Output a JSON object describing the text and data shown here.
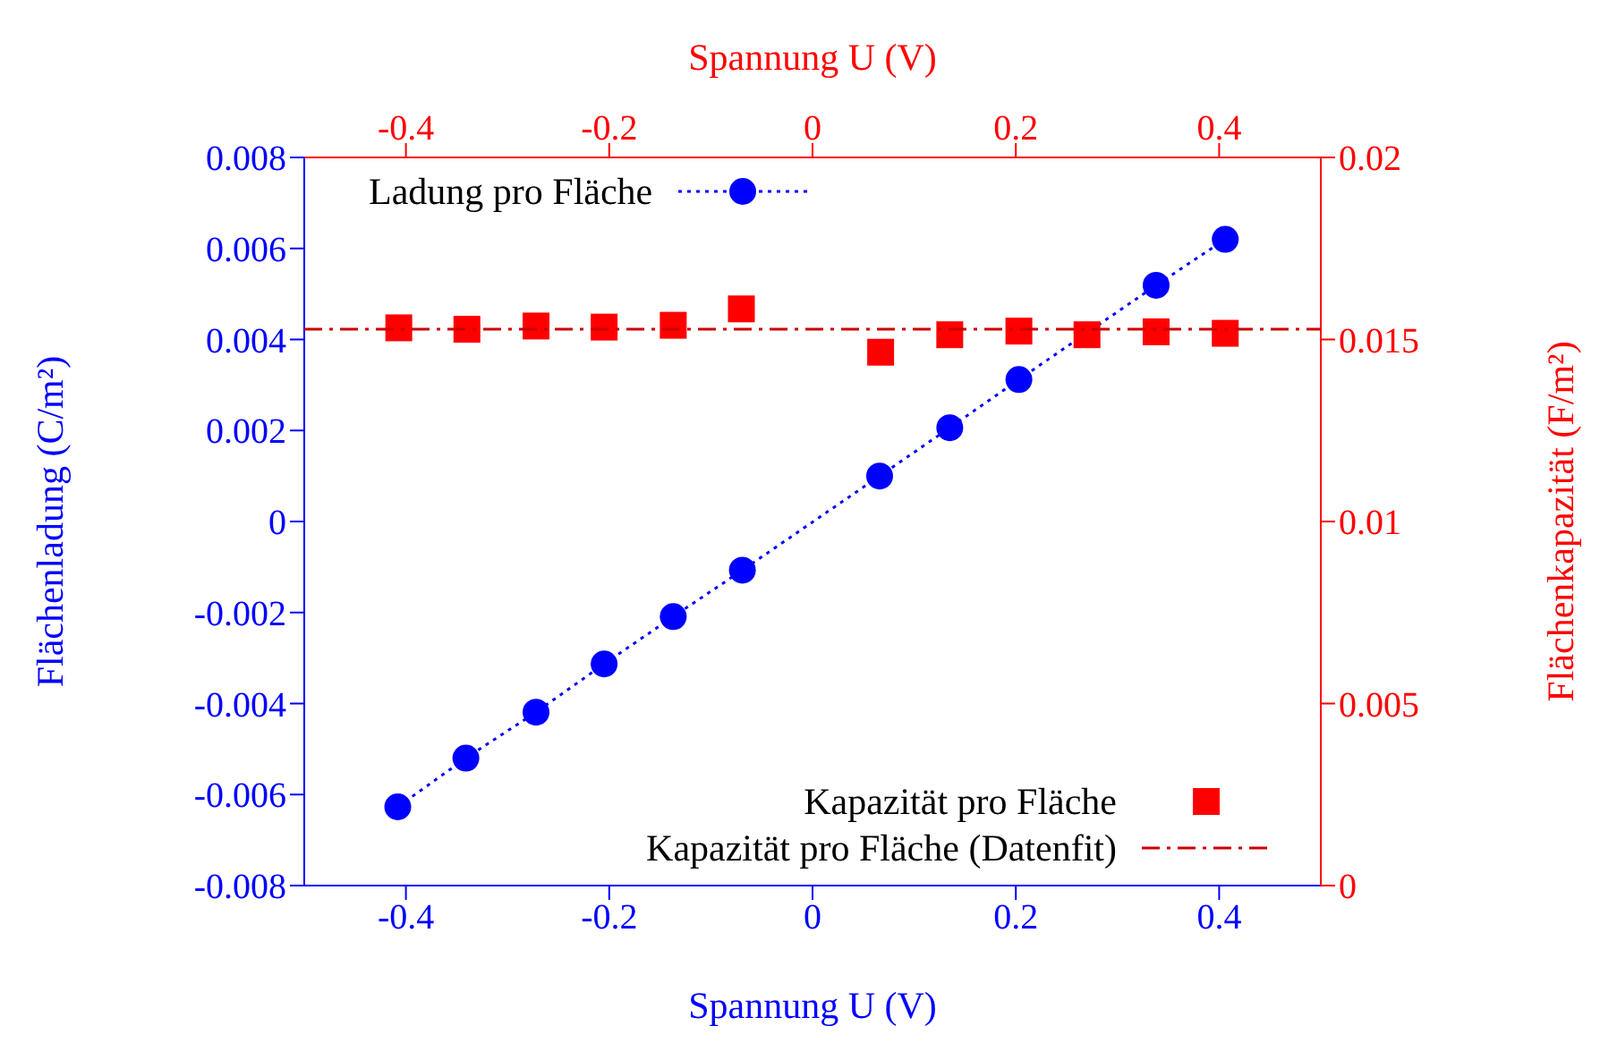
{
  "chart_data": {
    "type": "scatter",
    "xlabel": "Spannung U (V)",
    "x2label": "Spannung U (V)",
    "ylabel": "Flächenladung (C/m²)",
    "y2label": "Flächenkapazität (F/m²)",
    "xlim": [
      -0.5,
      0.5
    ],
    "xticks": [
      -0.4,
      -0.2,
      0,
      0.2,
      0.4
    ],
    "x2lim": [
      -0.5,
      0.5
    ],
    "x2ticks": [
      -0.4,
      -0.2,
      0,
      0.2,
      0.4
    ],
    "ylim": [
      -0.008,
      0.008
    ],
    "yticks": [
      -0.008,
      -0.006,
      -0.004,
      -0.002,
      0,
      0.002,
      0.004,
      0.006,
      0.008
    ],
    "y2lim": [
      0,
      0.02
    ],
    "y2ticks": [
      0,
      0.005,
      0.01,
      0.015,
      0.02
    ],
    "legend": "bottom right",
    "grid": false,
    "series": [
      {
        "name": "Ladung pro Fläche",
        "type": "line",
        "marker": "circle",
        "line_style": "dotted",
        "color": "#0000ff",
        "x": [
          -0.408,
          -0.341,
          -0.272,
          -0.205,
          -0.137,
          -0.069,
          0.066,
          0.135,
          0.203,
          0.27,
          0.338,
          0.406
        ],
        "values": [
          -0.00627,
          -0.0052,
          -0.00419,
          -0.00313,
          -0.00209,
          -0.00107,
          0.001,
          0.00206,
          0.00312,
          null,
          0.00519,
          0.0062
        ]
      },
      {
        "name": "Kapazität pro Fläche",
        "marker": "square",
        "axis": "y2",
        "color": "#ff0000",
        "x": [
          -0.407,
          -0.34,
          -0.272,
          -0.205,
          -0.137,
          -0.07,
          0.067,
          0.135,
          0.203,
          0.27,
          0.338,
          0.406
        ],
        "values": [
          0.01532,
          0.01528,
          0.01537,
          0.01534,
          0.01539,
          0.01584,
          0.01465,
          0.01513,
          0.01523,
          0.01513,
          0.01521,
          0.01517
        ]
      },
      {
        "name": "Kapazität pro Fläche (Datenfit)",
        "type": "line",
        "marker": "none",
        "line_style": "dashed",
        "axis": "y2",
        "color": "#cc0000",
        "x": [
          -0.5,
          0.5
        ],
        "values": [
          0.01528,
          0.01528
        ]
      }
    ]
  }
}
